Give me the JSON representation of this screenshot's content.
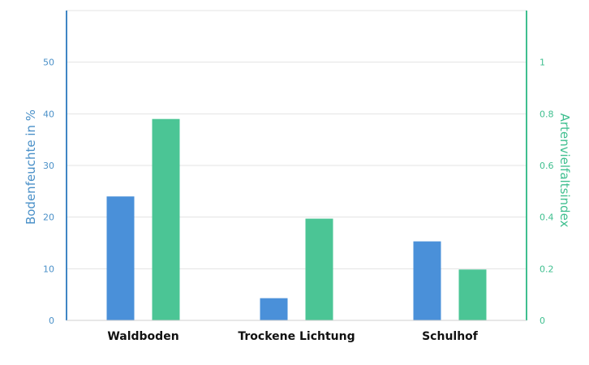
{
  "chart_data": {
    "type": "bar",
    "categories": [
      "Waldboden",
      "Trockene Lichtung",
      "Schulhof"
    ],
    "series": [
      {
        "axis": "left",
        "color": "#4a90d9",
        "values": [
          24,
          4.3,
          15.3
        ]
      },
      {
        "axis": "right",
        "color": "#4bc595",
        "values": [
          0.78,
          0.394,
          0.197
        ]
      }
    ],
    "ylabel": "Bodenfeuchte in %",
    "y2label": "Artenvielfaltsindex",
    "ylim": [
      0,
      60
    ],
    "y2lim": [
      0,
      1.2
    ],
    "yticks": [
      "0",
      "10",
      "20",
      "30",
      "40",
      "50"
    ],
    "y2ticks": [
      "0",
      "0.2",
      "0.4",
      "0.6",
      "0.8",
      "1"
    ],
    "grid": true,
    "colors": {
      "left_axis": "#4a90c8",
      "right_axis": "#3fbf8f",
      "grid": "#e3e3e3"
    }
  }
}
